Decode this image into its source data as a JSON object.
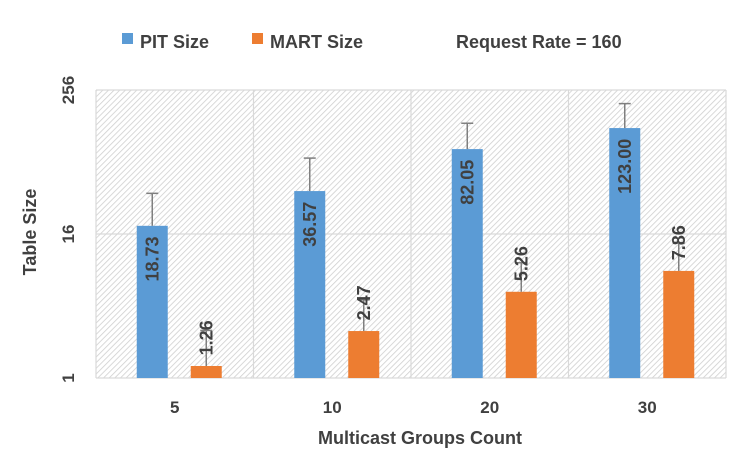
{
  "chart_data": {
    "type": "bar",
    "title": "Request Rate = 160",
    "xlabel": "Multicast Groups Count",
    "ylabel": "Table Size",
    "yscale": "log2",
    "ylim": [
      1,
      256
    ],
    "yticks": [
      "1",
      "16",
      "256"
    ],
    "grid": true,
    "legend_position": "top-left",
    "categories": [
      "5",
      "10",
      "20",
      "30"
    ],
    "series": [
      {
        "name": "PIT Size",
        "color": "#5b9bd5",
        "values": [
          18.73,
          36.57,
          82.05,
          123.0
        ],
        "labels": [
          "18.73",
          "36.57",
          "82.05",
          "123.00"
        ],
        "error_upper": [
          35,
          69,
          135,
          197
        ]
      },
      {
        "name": "MART Size",
        "color": "#ed7d31",
        "values": [
          1.26,
          2.47,
          5.26,
          7.86
        ],
        "labels": [
          "1.26",
          "2.47",
          "5.26",
          "7.86"
        ],
        "error_upper": [
          2.5,
          4.5,
          9.2,
          13.4
        ]
      }
    ],
    "axis_color": "#404040",
    "grid_color": "#d9d9d9"
  }
}
